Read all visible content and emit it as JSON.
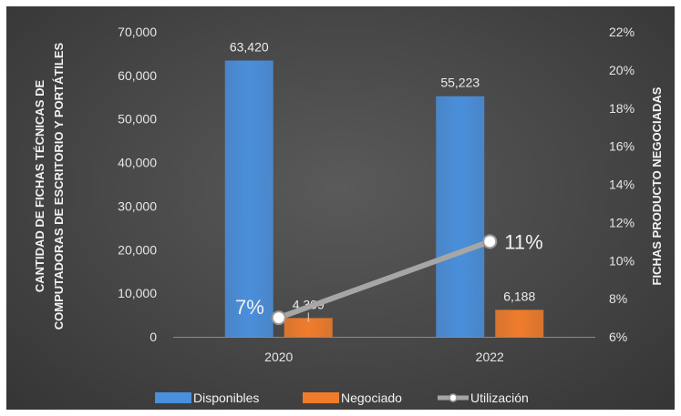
{
  "chart_data": {
    "type": "bar",
    "categories": [
      "2020",
      "2022"
    ],
    "series": [
      {
        "name": "Disponibles",
        "type": "bar",
        "axis": "left",
        "values": [
          63420,
          55223
        ],
        "labels": [
          "63,420",
          "55,223"
        ],
        "color": "#4a8fdc"
      },
      {
        "name": "Negociado",
        "type": "bar",
        "axis": "left",
        "values": [
          4309,
          6188
        ],
        "labels": [
          "4,309",
          "6,188"
        ],
        "color": "#f07c2b"
      },
      {
        "name": "Utilización",
        "type": "line",
        "axis": "right",
        "values": [
          7,
          11
        ],
        "labels": [
          "7%",
          "11%"
        ],
        "color": "#a6a6a6"
      }
    ],
    "ylabel_left": "CANTIDAD DE FICHAS TÉCNICAS DE COMPUTADORAS DE ESCRITORIO Y PORTÁTILES",
    "ylabel_left_lines": [
      "CANTIDAD DE FICHAS TÉCNICAS DE",
      "COMPUTADORAS DE ESCRITORIO Y PORTÁTILES"
    ],
    "ylabel_right": "FICHAS PRODUCTO NEGOCIADAS",
    "ylim_left": [
      0,
      70000
    ],
    "ylim_right": [
      6,
      22
    ],
    "left_ticks": [
      0,
      10000,
      20000,
      30000,
      40000,
      50000,
      60000,
      70000
    ],
    "left_tick_labels": [
      "0",
      "10,000",
      "20,000",
      "30,000",
      "40,000",
      "50,000",
      "60,000",
      "70,000"
    ],
    "right_ticks": [
      6,
      8,
      10,
      12,
      14,
      16,
      18,
      20,
      22
    ],
    "right_tick_labels": [
      "6%",
      "8%",
      "10%",
      "12%",
      "14%",
      "16%",
      "18%",
      "20%",
      "22%"
    ],
    "grid": false,
    "legend_position": "bottom",
    "background": "#444444"
  }
}
